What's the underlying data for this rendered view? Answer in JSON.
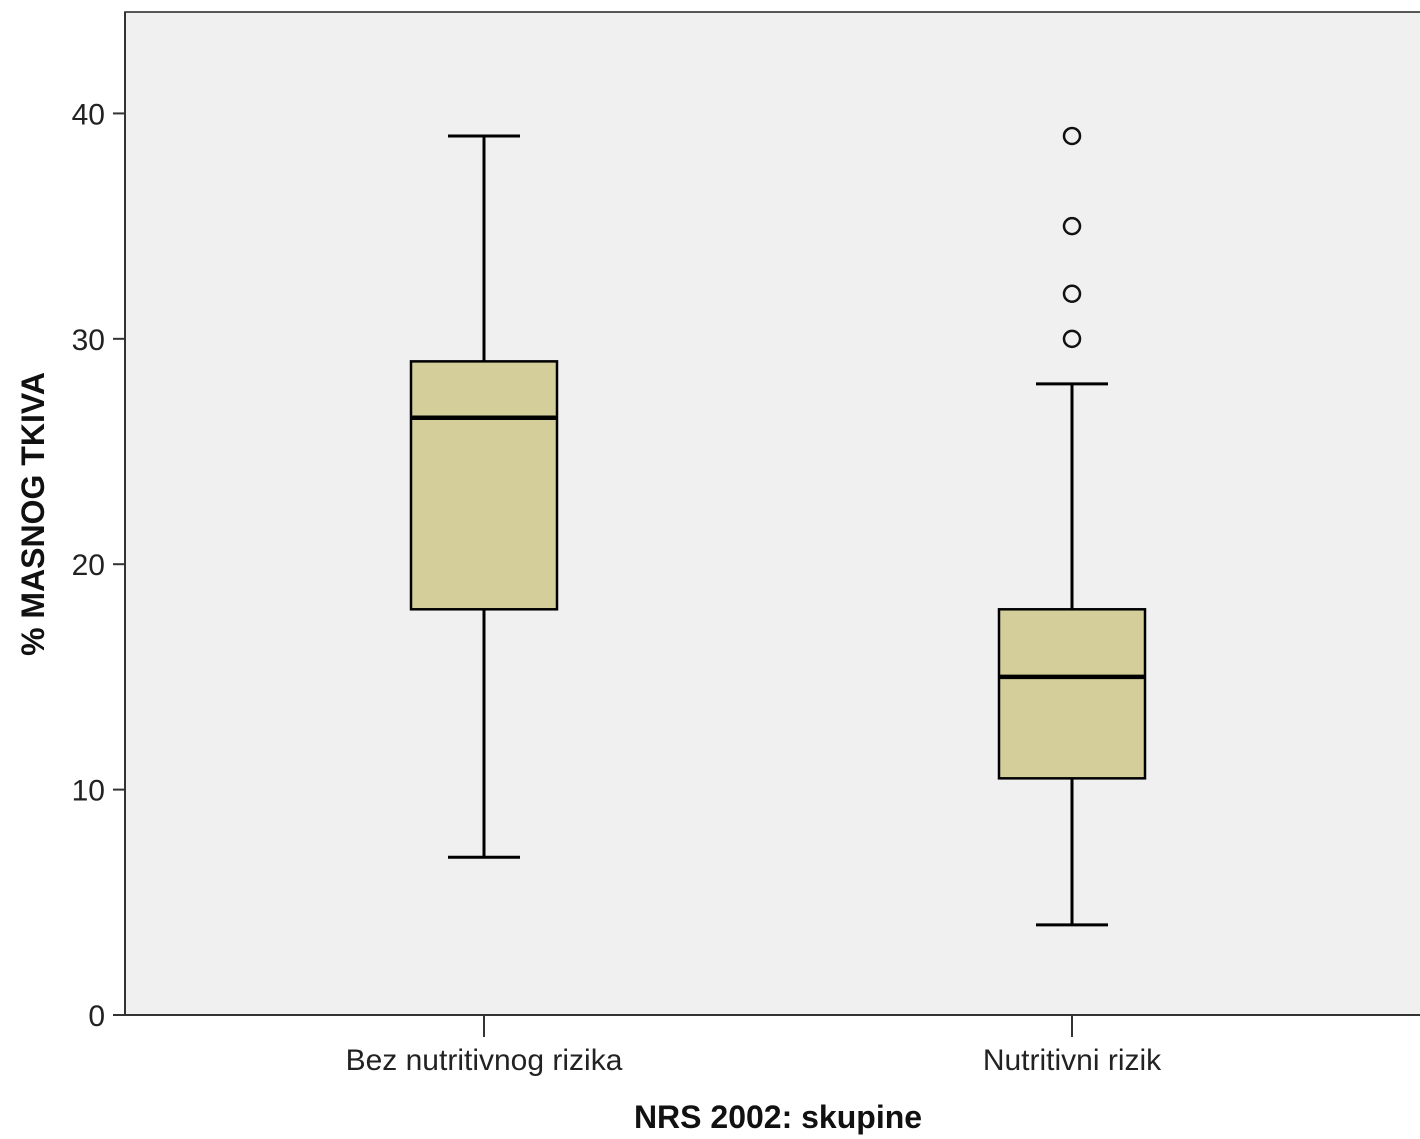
{
  "chart_data": {
    "type": "boxplot",
    "title": "",
    "xlabel": "NRS 2002: skupine",
    "ylabel": "% MASNOG TKIVA",
    "ylim": [
      0,
      44.5
    ],
    "yticks": [
      0,
      10,
      20,
      30,
      40
    ],
    "grid": false,
    "legend": "none",
    "categories": [
      "Bez nutritivnog rizika",
      "Nutritivni rizik"
    ],
    "boxes": [
      {
        "category": "Bez nutritivnog rizika",
        "whisker_low": 7,
        "q1": 18,
        "median": 26.5,
        "q3": 29,
        "whisker_high": 39,
        "outliers": []
      },
      {
        "category": "Nutritivni rizik",
        "whisker_low": 4,
        "q1": 10.5,
        "median": 15,
        "q3": 18,
        "whisker_high": 28,
        "outliers": [
          30,
          32,
          35,
          39
        ]
      }
    ],
    "colors": {
      "plot_background": "#f0f0f0",
      "box_fill": "#d4cf9a",
      "stroke": "#000000"
    }
  }
}
